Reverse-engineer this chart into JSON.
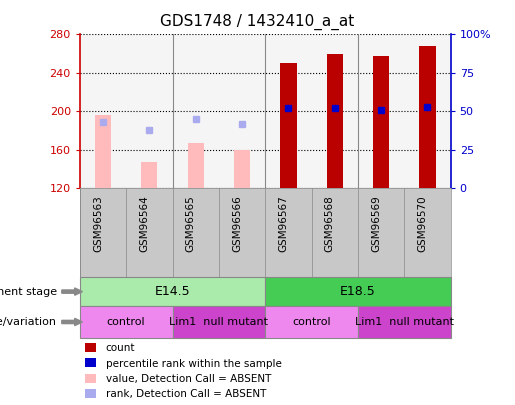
{
  "title": "GDS1748 / 1432410_a_at",
  "samples": [
    "GSM96563",
    "GSM96564",
    "GSM96565",
    "GSM96566",
    "GSM96567",
    "GSM96568",
    "GSM96569",
    "GSM96570"
  ],
  "bar_values": [
    196,
    147,
    167,
    160,
    250,
    260,
    258,
    268
  ],
  "bar_colors": [
    "#ffbbbb",
    "#ffbbbb",
    "#ffbbbb",
    "#ffbbbb",
    "#bb0000",
    "#bb0000",
    "#bb0000",
    "#bb0000"
  ],
  "rank_values": [
    43,
    38,
    45,
    42,
    52,
    52,
    51,
    53
  ],
  "rank_colors": [
    "#aaaaee",
    "#aaaaee",
    "#aaaaee",
    "#aaaaee",
    "#0000cc",
    "#0000cc",
    "#0000cc",
    "#0000cc"
  ],
  "ylim_left": [
    120,
    280
  ],
  "ylim_right": [
    0,
    100
  ],
  "yticks_left": [
    120,
    160,
    200,
    240,
    280
  ],
  "yticks_right": [
    0,
    25,
    50,
    75,
    100
  ],
  "yticklabels_right": [
    "0",
    "25",
    "50",
    "75",
    "100%"
  ],
  "left_axis_color": "#cc0000",
  "right_axis_color": "#0000cc",
  "development_stages": [
    {
      "label": "E14.5",
      "start": 0,
      "end": 4,
      "color": "#aaeaaa"
    },
    {
      "label": "E18.5",
      "start": 4,
      "end": 8,
      "color": "#44cc55"
    }
  ],
  "genotype_groups": [
    {
      "label": "control",
      "start": 0,
      "end": 2,
      "color": "#ee88ee"
    },
    {
      "label": "Lim1  null mutant",
      "start": 2,
      "end": 4,
      "color": "#cc44cc"
    },
    {
      "label": "control",
      "start": 4,
      "end": 6,
      "color": "#ee88ee"
    },
    {
      "label": "Lim1  null mutant",
      "start": 6,
      "end": 8,
      "color": "#cc44cc"
    }
  ],
  "legend_items": [
    {
      "label": "count",
      "color": "#bb0000"
    },
    {
      "label": "percentile rank within the sample",
      "color": "#0000cc"
    },
    {
      "label": "value, Detection Call = ABSENT",
      "color": "#ffbbbb"
    },
    {
      "label": "rank, Detection Call = ABSENT",
      "color": "#aaaaee"
    }
  ],
  "dev_label": "development stage",
  "geno_label": "genotype/variation",
  "bar_width": 0.35,
  "rank_marker_size": 5,
  "bg_color": "#ffffff",
  "sample_bg": "#c8c8c8",
  "separator_color": "#888888"
}
